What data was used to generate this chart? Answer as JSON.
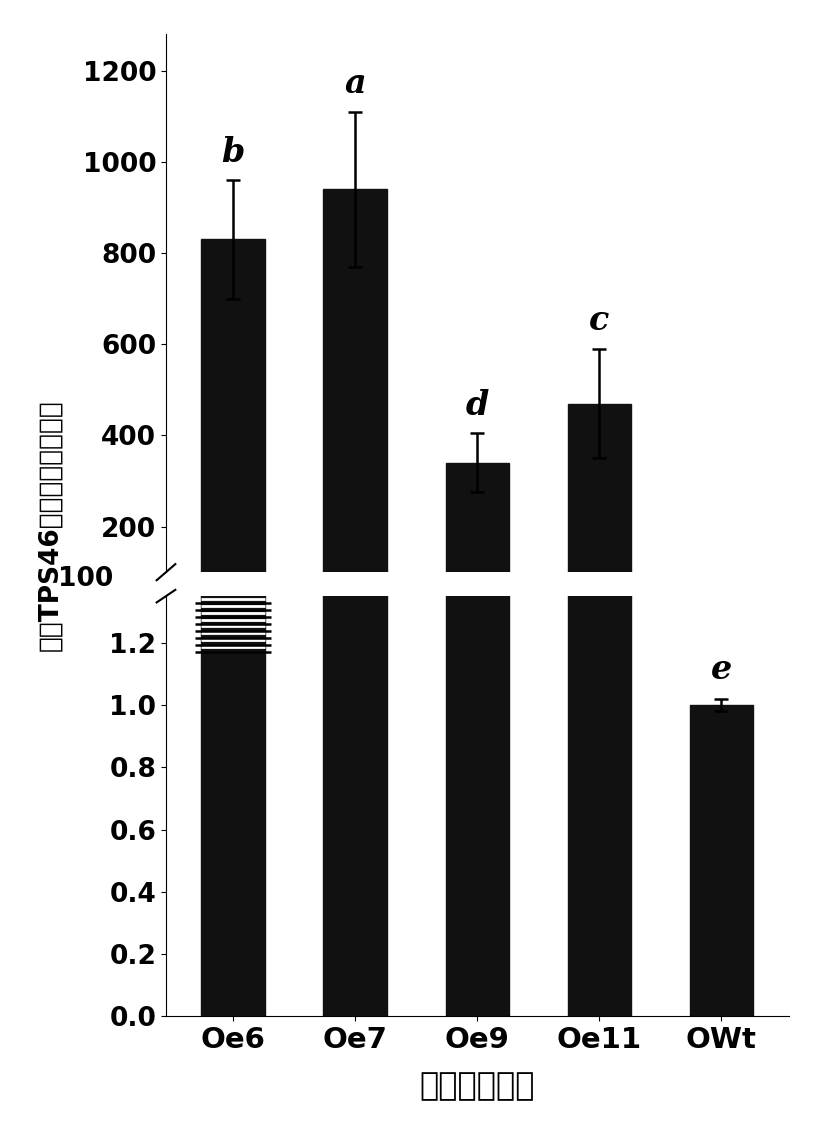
{
  "categories": [
    "Oe6",
    "Oe7",
    "Oe9",
    "Oe11",
    "OWt"
  ],
  "values": [
    830,
    940,
    340,
    470,
    1.0
  ],
  "errors": [
    130,
    170,
    65,
    120,
    0.02
  ],
  "labels": [
    "b",
    "a",
    "d",
    "c",
    "e"
  ],
  "bar_color": "#111111",
  "xlabel": "不同水稺品系",
  "ylabel": "水稺TPS46基因的相对表达量",
  "upper_ylim": [
    100,
    1280
  ],
  "lower_ylim": [
    0.0,
    1.35
  ],
  "upper_yticks": [
    200,
    400,
    600,
    800,
    1000,
    1200
  ],
  "lower_yticks": [
    0.0,
    0.2,
    0.4,
    0.6,
    0.8,
    1.0,
    1.2
  ],
  "background_color": "#ffffff",
  "label_fontsize": 22,
  "tick_fontsize": 19,
  "bar_width": 0.52,
  "xlabel_fontsize": 23,
  "ylabel_fontsize": 19,
  "upper_100_label": "100"
}
